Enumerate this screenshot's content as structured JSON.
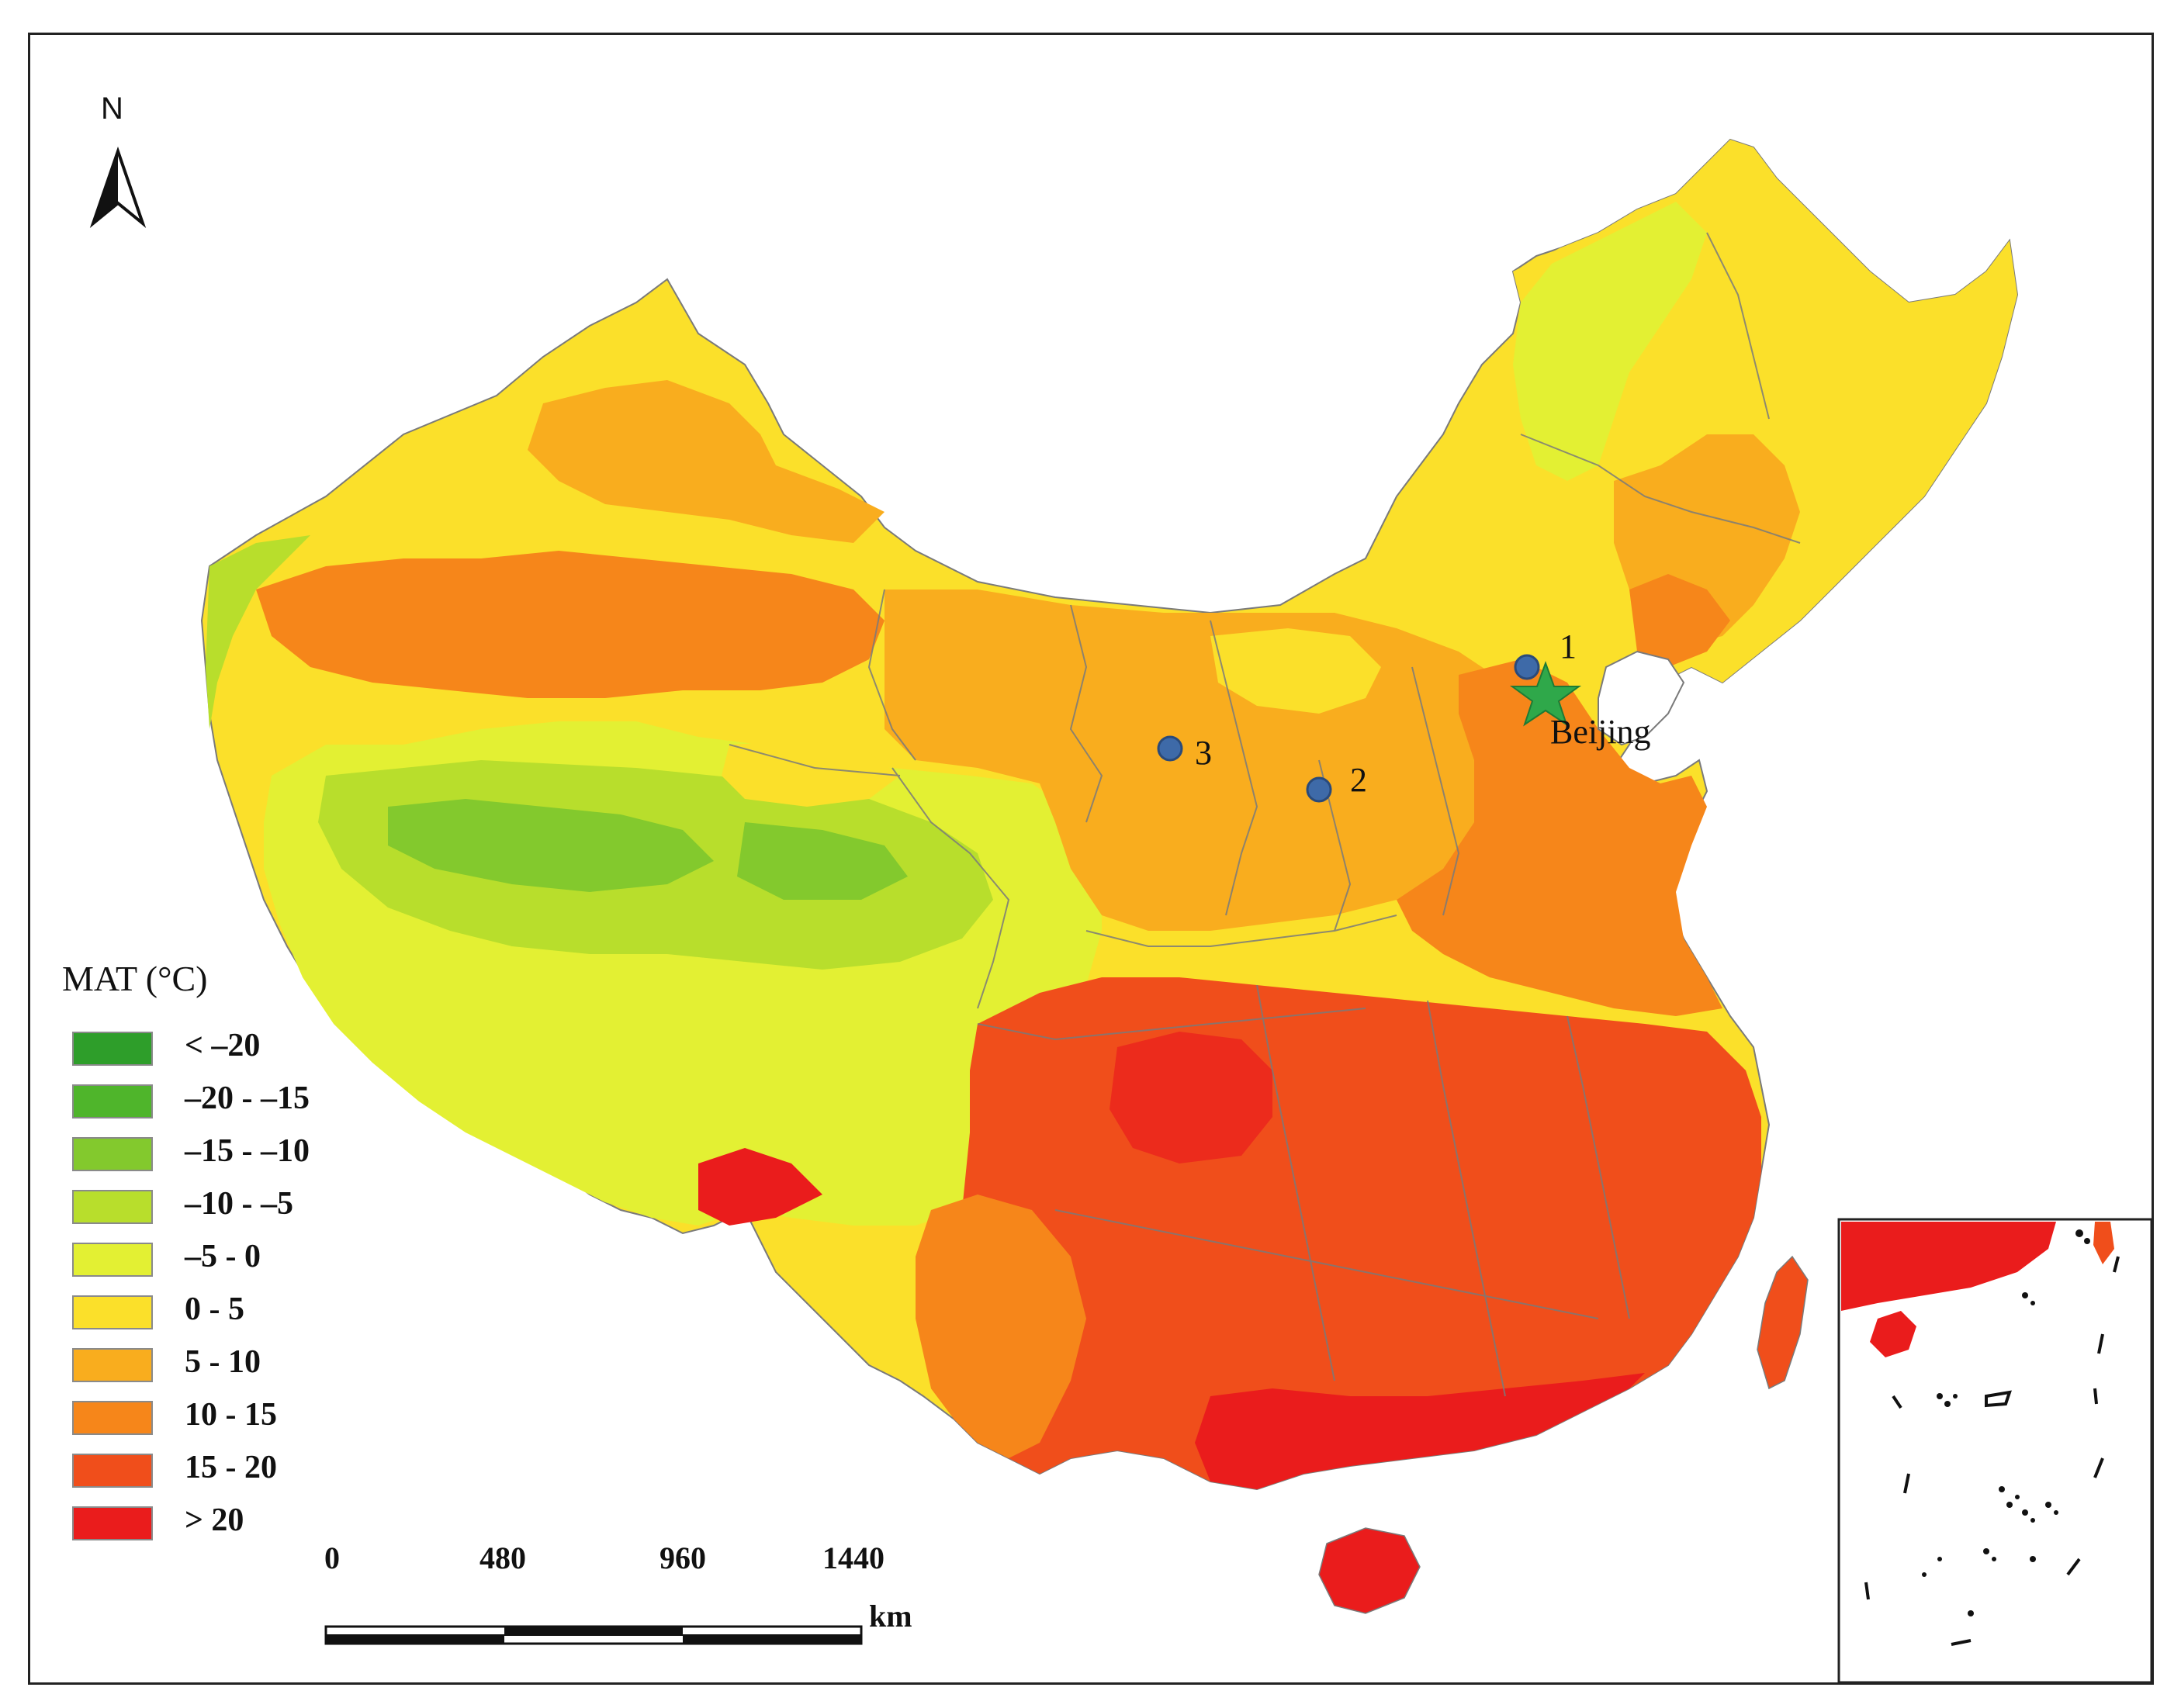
{
  "map": {
    "north_label": "N",
    "city_label": "Beijing",
    "sites": [
      {
        "label": "1"
      },
      {
        "label": "2"
      },
      {
        "label": "3"
      }
    ]
  },
  "legend": {
    "title": "MAT (°C)",
    "items": [
      {
        "label": "< –20",
        "color": "#2e9e2a"
      },
      {
        "label": "–20 - –15",
        "color": "#4fb52b"
      },
      {
        "label": "–15 - –10",
        "color": "#83c92d"
      },
      {
        "label": "–10 - –5",
        "color": "#b8de2c"
      },
      {
        "label": "–5 - 0",
        "color": "#e3f033"
      },
      {
        "label": "0 - 5",
        "color": "#fbe02a"
      },
      {
        "label": "5 - 10",
        "color": "#f9ad1e"
      },
      {
        "label": "10 - 15",
        "color": "#f6861a"
      },
      {
        "label": "15 - 20",
        "color": "#f04e1b"
      },
      {
        "label": "> 20",
        "color": "#ea1c1c"
      }
    ]
  },
  "scale_bar": {
    "ticks": [
      "0",
      "480",
      "960",
      "1440"
    ],
    "unit": "km"
  },
  "colors": {
    "site_marker": "#3e6aa8",
    "beijing_star": "#2fa84a",
    "boundary": "#7a7a7a"
  }
}
